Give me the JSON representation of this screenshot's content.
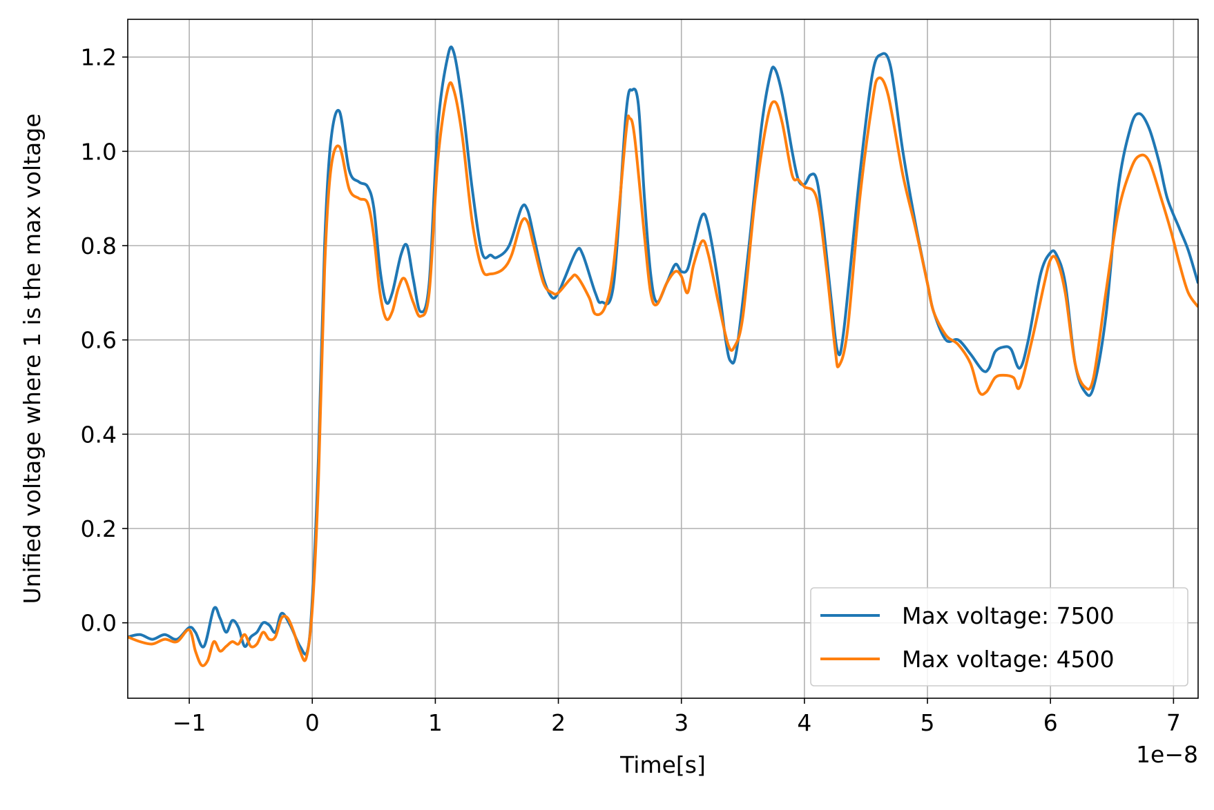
{
  "chart_data": {
    "type": "line",
    "title": "",
    "xlabel": "Time[s]",
    "ylabel": "Unified voltage where 1 is the max voltage",
    "x_offset_label": "1e−8",
    "xlim": [
      -1.5,
      7.2
    ],
    "ylim": [
      -0.16,
      1.28
    ],
    "x_ticks": [
      -1,
      0,
      1,
      2,
      3,
      4,
      5,
      6,
      7
    ],
    "x_tick_labels": [
      "−1",
      "0",
      "1",
      "2",
      "3",
      "4",
      "5",
      "6",
      "7"
    ],
    "y_ticks": [
      0.0,
      0.2,
      0.4,
      0.6,
      0.8,
      1.0,
      1.2
    ],
    "y_tick_labels": [
      "0.0",
      "0.2",
      "0.4",
      "0.6",
      "0.8",
      "1.0",
      "1.2"
    ],
    "grid": true,
    "legend_position": "bottom-right",
    "series": [
      {
        "name": "Max voltage: 7500",
        "color": "#1f77b4",
        "points": [
          [
            -1.5,
            -0.03
          ],
          [
            -1.4,
            -0.025
          ],
          [
            -1.3,
            -0.035
          ],
          [
            -1.2,
            -0.025
          ],
          [
            -1.1,
            -0.035
          ],
          [
            -1.0,
            -0.01
          ],
          [
            -0.95,
            -0.02
          ],
          [
            -0.88,
            -0.05
          ],
          [
            -0.8,
            0.03
          ],
          [
            -0.75,
            0.01
          ],
          [
            -0.7,
            -0.02
          ],
          [
            -0.65,
            0.005
          ],
          [
            -0.6,
            -0.01
          ],
          [
            -0.55,
            -0.05
          ],
          [
            -0.5,
            -0.03
          ],
          [
            -0.45,
            -0.02
          ],
          [
            -0.4,
            0.0
          ],
          [
            -0.35,
            -0.005
          ],
          [
            -0.3,
            -0.02
          ],
          [
            -0.25,
            0.02
          ],
          [
            -0.18,
            -0.005
          ],
          [
            -0.1,
            -0.05
          ],
          [
            -0.04,
            -0.06
          ],
          [
            0.0,
            0.05
          ],
          [
            0.05,
            0.35
          ],
          [
            0.1,
            0.8
          ],
          [
            0.15,
            1.02
          ],
          [
            0.22,
            1.085
          ],
          [
            0.3,
            0.96
          ],
          [
            0.38,
            0.935
          ],
          [
            0.45,
            0.925
          ],
          [
            0.5,
            0.88
          ],
          [
            0.55,
            0.75
          ],
          [
            0.6,
            0.68
          ],
          [
            0.65,
            0.7
          ],
          [
            0.72,
            0.78
          ],
          [
            0.77,
            0.8
          ],
          [
            0.82,
            0.73
          ],
          [
            0.88,
            0.66
          ],
          [
            0.95,
            0.72
          ],
          [
            1.02,
            1.05
          ],
          [
            1.1,
            1.2
          ],
          [
            1.15,
            1.21
          ],
          [
            1.22,
            1.1
          ],
          [
            1.3,
            0.92
          ],
          [
            1.38,
            0.785
          ],
          [
            1.45,
            0.78
          ],
          [
            1.5,
            0.775
          ],
          [
            1.6,
            0.8
          ],
          [
            1.7,
            0.88
          ],
          [
            1.75,
            0.875
          ],
          [
            1.8,
            0.82
          ],
          [
            1.88,
            0.73
          ],
          [
            1.95,
            0.69
          ],
          [
            2.0,
            0.7
          ],
          [
            2.05,
            0.73
          ],
          [
            2.15,
            0.79
          ],
          [
            2.2,
            0.78
          ],
          [
            2.3,
            0.7
          ],
          [
            2.35,
            0.68
          ],
          [
            2.45,
            0.72
          ],
          [
            2.55,
            1.08
          ],
          [
            2.6,
            1.13
          ],
          [
            2.65,
            1.1
          ],
          [
            2.7,
            0.9
          ],
          [
            2.75,
            0.74
          ],
          [
            2.8,
            0.68
          ],
          [
            2.88,
            0.72
          ],
          [
            2.95,
            0.76
          ],
          [
            3.0,
            0.745
          ],
          [
            3.05,
            0.75
          ],
          [
            3.1,
            0.8
          ],
          [
            3.17,
            0.865
          ],
          [
            3.22,
            0.84
          ],
          [
            3.3,
            0.72
          ],
          [
            3.36,
            0.6
          ],
          [
            3.4,
            0.555
          ],
          [
            3.45,
            0.58
          ],
          [
            3.55,
            0.8
          ],
          [
            3.65,
            1.05
          ],
          [
            3.72,
            1.16
          ],
          [
            3.76,
            1.175
          ],
          [
            3.82,
            1.12
          ],
          [
            3.9,
            1.0
          ],
          [
            3.95,
            0.94
          ],
          [
            4.0,
            0.93
          ],
          [
            4.05,
            0.95
          ],
          [
            4.1,
            0.94
          ],
          [
            4.15,
            0.85
          ],
          [
            4.22,
            0.68
          ],
          [
            4.27,
            0.575
          ],
          [
            4.32,
            0.62
          ],
          [
            4.45,
            0.95
          ],
          [
            4.55,
            1.16
          ],
          [
            4.62,
            1.205
          ],
          [
            4.7,
            1.18
          ],
          [
            4.8,
            1.0
          ],
          [
            4.9,
            0.85
          ],
          [
            5.0,
            0.72
          ],
          [
            5.05,
            0.66
          ],
          [
            5.15,
            0.6
          ],
          [
            5.25,
            0.6
          ],
          [
            5.35,
            0.57
          ],
          [
            5.45,
            0.535
          ],
          [
            5.5,
            0.54
          ],
          [
            5.55,
            0.575
          ],
          [
            5.62,
            0.585
          ],
          [
            5.68,
            0.58
          ],
          [
            5.75,
            0.54
          ],
          [
            5.82,
            0.6
          ],
          [
            5.92,
            0.74
          ],
          [
            6.0,
            0.785
          ],
          [
            6.05,
            0.78
          ],
          [
            6.12,
            0.72
          ],
          [
            6.2,
            0.55
          ],
          [
            6.28,
            0.49
          ],
          [
            6.35,
            0.5
          ],
          [
            6.45,
            0.65
          ],
          [
            6.55,
            0.92
          ],
          [
            6.65,
            1.05
          ],
          [
            6.72,
            1.08
          ],
          [
            6.8,
            1.05
          ],
          [
            6.88,
            0.98
          ],
          [
            6.95,
            0.9
          ],
          [
            7.05,
            0.835
          ],
          [
            7.12,
            0.79
          ],
          [
            7.2,
            0.72
          ]
        ]
      },
      {
        "name": "Max voltage: 4500",
        "color": "#ff7f0e",
        "points": [
          [
            -1.5,
            -0.03
          ],
          [
            -1.4,
            -0.04
          ],
          [
            -1.3,
            -0.045
          ],
          [
            -1.2,
            -0.035
          ],
          [
            -1.1,
            -0.04
          ],
          [
            -1.0,
            -0.015
          ],
          [
            -0.95,
            -0.06
          ],
          [
            -0.9,
            -0.09
          ],
          [
            -0.85,
            -0.08
          ],
          [
            -0.8,
            -0.04
          ],
          [
            -0.75,
            -0.06
          ],
          [
            -0.7,
            -0.05
          ],
          [
            -0.65,
            -0.04
          ],
          [
            -0.6,
            -0.045
          ],
          [
            -0.55,
            -0.025
          ],
          [
            -0.5,
            -0.05
          ],
          [
            -0.45,
            -0.045
          ],
          [
            -0.4,
            -0.02
          ],
          [
            -0.35,
            -0.035
          ],
          [
            -0.3,
            -0.03
          ],
          [
            -0.25,
            0.01
          ],
          [
            -0.2,
            0.01
          ],
          [
            -0.15,
            -0.02
          ],
          [
            -0.1,
            -0.06
          ],
          [
            -0.05,
            -0.075
          ],
          [
            0.0,
            0.03
          ],
          [
            0.05,
            0.3
          ],
          [
            0.1,
            0.75
          ],
          [
            0.15,
            0.96
          ],
          [
            0.22,
            1.01
          ],
          [
            0.3,
            0.92
          ],
          [
            0.38,
            0.9
          ],
          [
            0.45,
            0.89
          ],
          [
            0.5,
            0.82
          ],
          [
            0.55,
            0.7
          ],
          [
            0.6,
            0.645
          ],
          [
            0.65,
            0.66
          ],
          [
            0.7,
            0.71
          ],
          [
            0.75,
            0.73
          ],
          [
            0.82,
            0.68
          ],
          [
            0.88,
            0.65
          ],
          [
            0.95,
            0.7
          ],
          [
            1.02,
            0.98
          ],
          [
            1.1,
            1.13
          ],
          [
            1.15,
            1.13
          ],
          [
            1.22,
            1.03
          ],
          [
            1.3,
            0.85
          ],
          [
            1.38,
            0.75
          ],
          [
            1.45,
            0.74
          ],
          [
            1.55,
            0.75
          ],
          [
            1.62,
            0.78
          ],
          [
            1.7,
            0.85
          ],
          [
            1.75,
            0.85
          ],
          [
            1.8,
            0.8
          ],
          [
            1.88,
            0.72
          ],
          [
            1.95,
            0.7
          ],
          [
            2.0,
            0.7
          ],
          [
            2.1,
            0.73
          ],
          [
            2.15,
            0.735
          ],
          [
            2.25,
            0.69
          ],
          [
            2.3,
            0.655
          ],
          [
            2.38,
            0.67
          ],
          [
            2.45,
            0.76
          ],
          [
            2.55,
            1.04
          ],
          [
            2.58,
            1.07
          ],
          [
            2.62,
            1.03
          ],
          [
            2.7,
            0.82
          ],
          [
            2.75,
            0.7
          ],
          [
            2.8,
            0.675
          ],
          [
            2.88,
            0.72
          ],
          [
            2.95,
            0.745
          ],
          [
            3.0,
            0.735
          ],
          [
            3.05,
            0.7
          ],
          [
            3.1,
            0.76
          ],
          [
            3.17,
            0.81
          ],
          [
            3.22,
            0.78
          ],
          [
            3.3,
            0.68
          ],
          [
            3.38,
            0.59
          ],
          [
            3.43,
            0.585
          ],
          [
            3.5,
            0.65
          ],
          [
            3.6,
            0.9
          ],
          [
            3.7,
            1.07
          ],
          [
            3.76,
            1.105
          ],
          [
            3.82,
            1.06
          ],
          [
            3.9,
            0.95
          ],
          [
            3.95,
            0.94
          ],
          [
            4.0,
            0.925
          ],
          [
            4.1,
            0.9
          ],
          [
            4.18,
            0.75
          ],
          [
            4.25,
            0.58
          ],
          [
            4.28,
            0.545
          ],
          [
            4.35,
            0.62
          ],
          [
            4.45,
            0.9
          ],
          [
            4.55,
            1.1
          ],
          [
            4.6,
            1.155
          ],
          [
            4.68,
            1.12
          ],
          [
            4.8,
            0.95
          ],
          [
            4.9,
            0.84
          ],
          [
            5.0,
            0.72
          ],
          [
            5.05,
            0.66
          ],
          [
            5.15,
            0.61
          ],
          [
            5.25,
            0.59
          ],
          [
            5.35,
            0.55
          ],
          [
            5.42,
            0.49
          ],
          [
            5.48,
            0.49
          ],
          [
            5.55,
            0.52
          ],
          [
            5.62,
            0.525
          ],
          [
            5.7,
            0.52
          ],
          [
            5.75,
            0.5
          ],
          [
            5.85,
            0.6
          ],
          [
            5.95,
            0.72
          ],
          [
            6.0,
            0.77
          ],
          [
            6.05,
            0.77
          ],
          [
            6.12,
            0.7
          ],
          [
            6.2,
            0.55
          ],
          [
            6.28,
            0.5
          ],
          [
            6.35,
            0.52
          ],
          [
            6.45,
            0.7
          ],
          [
            6.55,
            0.87
          ],
          [
            6.65,
            0.96
          ],
          [
            6.72,
            0.99
          ],
          [
            6.8,
            0.98
          ],
          [
            6.9,
            0.9
          ],
          [
            6.98,
            0.83
          ],
          [
            7.05,
            0.76
          ],
          [
            7.12,
            0.7
          ],
          [
            7.2,
            0.67
          ]
        ]
      }
    ]
  }
}
